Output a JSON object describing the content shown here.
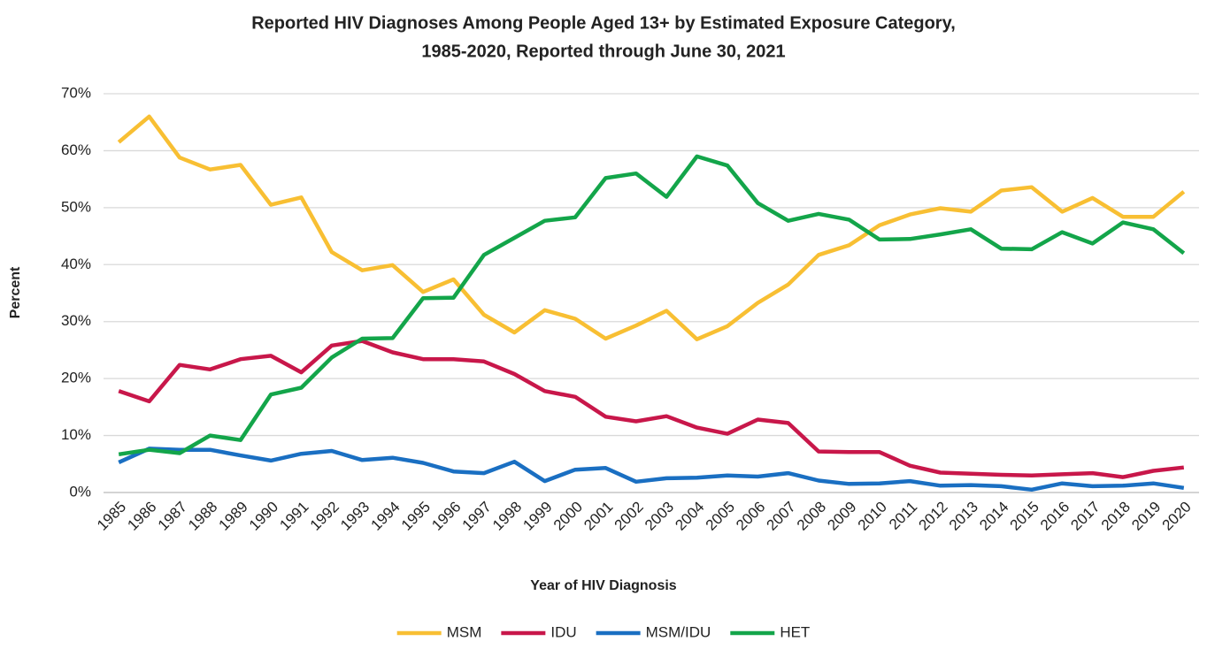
{
  "chart_data": {
    "type": "line",
    "title": [
      "Reported HIV Diagnoses Among People Aged 13+ by Estimated Exposure Category,",
      "1985-2020, Reported through June 30, 2021"
    ],
    "x_label": "Year of HIV Diagnosis",
    "y_label": "Percent",
    "categories": [
      "1985",
      "1986",
      "1987",
      "1988",
      "1989",
      "1990",
      "1991",
      "1992",
      "1993",
      "1994",
      "1995",
      "1996",
      "1997",
      "1998",
      "1999",
      "2000",
      "2001",
      "2002",
      "2003",
      "2004",
      "2005",
      "2006",
      "2007",
      "2008",
      "2009",
      "2010",
      "2011",
      "2012",
      "2013",
      "2014",
      "2015",
      "2016",
      "2017",
      "2018",
      "2019",
      "2020"
    ],
    "series": [
      {
        "name": "MSM",
        "color": "#f8bf33",
        "values": [
          61.5,
          66,
          58.8,
          56.7,
          57.5,
          50.5,
          51.8,
          42.2,
          39,
          39.9,
          35.2,
          37.4,
          31.2,
          28.1,
          32,
          30.5,
          27,
          29.3,
          31.9,
          26.9,
          29.2,
          33.3,
          36.5,
          41.7,
          43.4,
          46.9,
          48.8,
          49.9,
          49.3,
          53,
          53.6,
          49.3,
          51.7,
          48.4,
          48.4,
          52.8
        ]
      },
      {
        "name": "IDU",
        "color": "#c8174a",
        "values": [
          17.8,
          16,
          22.4,
          21.6,
          23.4,
          24,
          21.1,
          25.8,
          26.6,
          24.6,
          23.4,
          23.4,
          23,
          20.8,
          17.8,
          16.8,
          13.3,
          12.5,
          13.4,
          11.4,
          10.3,
          12.8,
          12.2,
          7.2,
          7.1,
          7.1,
          4.7,
          3.5,
          3.3,
          3.1,
          3.0,
          3.2,
          3.4,
          2.7,
          3.8,
          4.4
        ]
      },
      {
        "name": "MSM/IDU",
        "color": "#1a6fc2",
        "values": [
          5.3,
          7.7,
          7.5,
          7.5,
          6.5,
          5.6,
          6.8,
          7.3,
          5.7,
          6.1,
          5.2,
          3.7,
          3.4,
          5.4,
          2.0,
          4.0,
          4.3,
          1.9,
          2.5,
          2.6,
          3.0,
          2.8,
          3.4,
          2.1,
          1.5,
          1.6,
          2.0,
          1.2,
          1.3,
          1.1,
          0.5,
          1.6,
          1.1,
          1.2,
          1.6,
          0.8
        ]
      },
      {
        "name": "HET",
        "color": "#13a54a",
        "values": [
          6.7,
          7.5,
          6.9,
          10,
          9.2,
          17.2,
          18.4,
          23.7,
          27,
          27.1,
          34.1,
          34.2,
          41.7,
          44.7,
          47.7,
          48.3,
          55.2,
          56,
          51.9,
          59,
          57.4,
          50.8,
          47.7,
          48.9,
          47.9,
          44.4,
          44.5,
          45.3,
          46.2,
          42.8,
          42.7,
          45.7,
          43.7,
          47.4,
          46.2,
          42
        ]
      }
    ],
    "ylim": [
      0,
      70
    ],
    "yticks": [
      {
        "value": 0,
        "label": "0%"
      },
      {
        "value": 10,
        "label": "10%"
      },
      {
        "value": 20,
        "label": "20%"
      },
      {
        "value": 30,
        "label": "30%"
      },
      {
        "value": 40,
        "label": "40%"
      },
      {
        "value": 50,
        "label": "50%"
      },
      {
        "value": 60,
        "label": "60%"
      },
      {
        "value": 70,
        "label": "70%"
      }
    ],
    "grid": true,
    "legend": "bottom"
  }
}
